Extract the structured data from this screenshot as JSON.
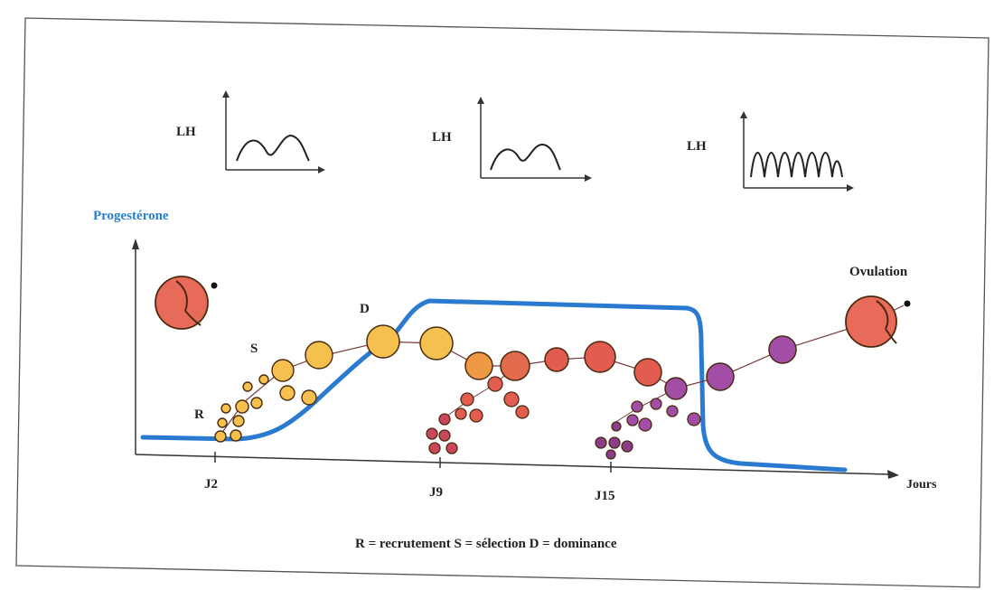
{
  "labels": {
    "lh_1": "LH",
    "lh_2": "LH",
    "lh_3": "LH",
    "progesterone": "Progestérone",
    "ovulation": "Ovulation",
    "recruitment_marker": "R",
    "selection_marker": "S",
    "dominance_marker": "D",
    "x_axis": "Jours",
    "legend": "R = recrutement  S = sélection  D = dominance"
  },
  "x_ticks": [
    "J2",
    "J9",
    "J15"
  ],
  "colors": {
    "progesterone_curve": "#2a7ad0",
    "follicle_yellow": "#f6c04e",
    "follicle_orange": "#ee9a45",
    "follicle_red": "#e25c50",
    "follicle_purple": "#a24ea6",
    "follicle_dark_purple": "#8a3e8a",
    "ovulation_follicle": "#e86a58",
    "axis": "#333333"
  },
  "lh_panels": [
    {
      "label_key": "lh_1",
      "pulses": 2,
      "amplitude": "medium"
    },
    {
      "label_key": "lh_2",
      "pulses": 2,
      "amplitude": "medium"
    },
    {
      "label_key": "lh_3",
      "pulses": 5,
      "amplitude": "high"
    }
  ]
}
